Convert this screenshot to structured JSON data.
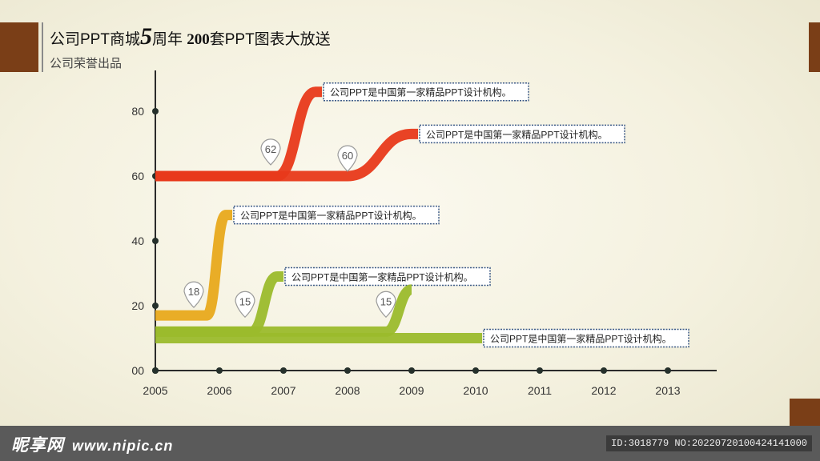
{
  "header": {
    "title_part1": "公司PPT商城",
    "title_big": "5",
    "title_part2": "周年 ",
    "title_bold": "200",
    "title_part3": "套PPT图表大放送",
    "subtitle": "公司荣誉出品"
  },
  "colors": {
    "red": "#e8391a",
    "orange": "#e8a91c",
    "green": "#9bbb2c",
    "axis": "#2b2b2b",
    "tick_dot": "#25302b",
    "label_border": "#3c5a86"
  },
  "chart_data": {
    "type": "line",
    "x_ticks": [
      "2005",
      "2006",
      "2007",
      "2008",
      "2009",
      "2010",
      "2011",
      "2012",
      "2013"
    ],
    "y_ticks": [
      "00",
      "20",
      "40",
      "60",
      "80"
    ],
    "xlim": [
      2005,
      2013
    ],
    "ylim": [
      0,
      80
    ],
    "grid": false,
    "series": [
      {
        "color": "red",
        "start_x": 2005,
        "start_y": 60,
        "step_x": 2006.9,
        "step_y": 62,
        "end_x": 2007.5,
        "end_y": 86,
        "label": "公司PPT是中国第一家精品PPT设计机构。"
      },
      {
        "color": "red",
        "start_x": 2005,
        "start_y": 60,
        "step_x": 2008.0,
        "step_y": 60,
        "end_x": 2009.0,
        "end_y": 73,
        "label": "公司PPT是中国第一家精品PPT设计机构。"
      },
      {
        "color": "orange",
        "start_x": 2005,
        "start_y": 17,
        "step_x": 2005.8,
        "step_y": 18,
        "end_x": 2006.1,
        "end_y": 48,
        "label": "公司PPT是中国第一家精品PPT设计机构。"
      },
      {
        "color": "green",
        "start_x": 2005,
        "start_y": 12,
        "step_x": 2006.5,
        "step_y": 15,
        "end_x": 2006.9,
        "end_y": 29,
        "label": "公司PPT是中国第一家精品PPT设计机构。"
      },
      {
        "color": "green",
        "start_x": 2005,
        "start_y": 12,
        "step_x": 2008.6,
        "step_y": 15,
        "end_x": 2009.0,
        "end_y": 25,
        "label": null
      },
      {
        "color": "green",
        "start_x": 2005,
        "start_y": 10,
        "step_x": 2009.0,
        "step_y": 10,
        "end_x": 2010.0,
        "end_y": 10,
        "label": "公司PPT是中国第一家精品PPT设计机构。"
      }
    ],
    "markers": [
      {
        "x": 2006.8,
        "y": 62,
        "text": "62"
      },
      {
        "x": 2008.0,
        "y": 60,
        "text": "60"
      },
      {
        "x": 2005.6,
        "y": 18,
        "text": "18"
      },
      {
        "x": 2006.4,
        "y": 15,
        "text": "15"
      },
      {
        "x": 2008.6,
        "y": 15,
        "text": "15"
      }
    ]
  },
  "footer": {
    "brand": "昵享网",
    "url": "www.nipic.cn",
    "id_text": "ID:3018779 NO:20220720100424141000"
  }
}
